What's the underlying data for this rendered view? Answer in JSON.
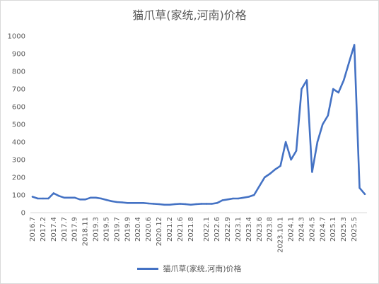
{
  "chart_data": {
    "type": "line",
    "title": "猫爪草(家统,河南)价格",
    "xlabel": "",
    "ylabel": "",
    "ylim": [
      0,
      1000
    ],
    "yticks": [
      0,
      100,
      200,
      300,
      400,
      500,
      600,
      700,
      800,
      900,
      1000
    ],
    "grid": false,
    "legend_position": "bottom",
    "x_tick_labels": [
      "2016.7",
      "2017.2",
      "2017.4",
      "2017.7",
      "2017.9",
      "2018.11",
      "2019.3",
      "2019.5",
      "2019.7",
      "2019.9",
      "2020.4",
      "2020.6",
      "2020.12",
      "2021.2",
      "2021.6",
      "2021.8",
      "2022.1",
      "2022.6",
      "2022.9",
      "2023.1",
      "2023.4",
      "2023.6",
      "2023.8",
      "2023.10.1",
      "2024.1",
      "2024.3",
      "2024.5",
      "2024.7",
      "2025.1",
      "2025.3",
      "2025.5"
    ],
    "series": [
      {
        "name": "猫爪草(家统,河南)价格",
        "color": "#4472c4",
        "values": [
          90,
          80,
          80,
          80,
          110,
          95,
          85,
          85,
          85,
          75,
          75,
          85,
          85,
          80,
          72,
          65,
          60,
          58,
          55,
          55,
          55,
          55,
          52,
          50,
          48,
          45,
          45,
          48,
          50,
          48,
          45,
          48,
          50,
          50,
          50,
          55,
          70,
          75,
          80,
          80,
          85,
          90,
          100,
          150,
          200,
          220,
          245,
          265,
          400,
          300,
          350,
          700,
          750,
          230,
          400,
          500,
          550,
          700,
          680,
          750,
          850,
          950,
          140,
          105
        ]
      }
    ]
  }
}
